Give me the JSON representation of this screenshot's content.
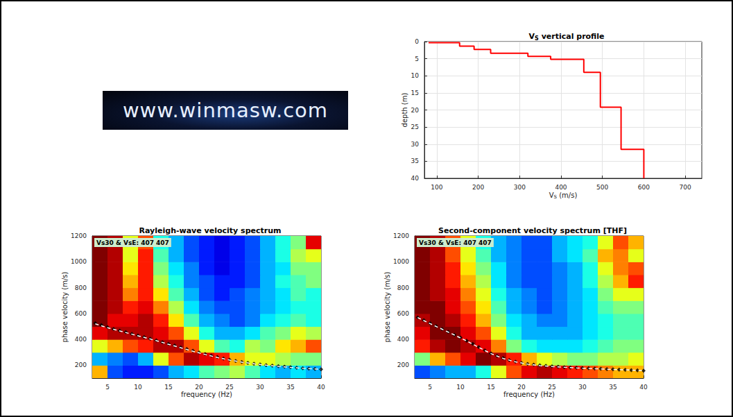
{
  "logo_text": "www.winmasw.com",
  "chart_data": [
    {
      "type": "step",
      "title": {
        "base": "V",
        "subscript": "S",
        "text": " vertical profile"
      },
      "xlabel": {
        "base": "V",
        "subscript": "S",
        "text": " (m/s)"
      },
      "ylabel": "depth (m)",
      "color": "#ff0000",
      "points": [
        [
          80,
          0.3
        ],
        [
          155,
          0.3
        ],
        [
          155,
          1.3
        ],
        [
          190,
          1.3
        ],
        [
          190,
          2.3
        ],
        [
          230,
          2.3
        ],
        [
          230,
          3.4
        ],
        [
          320,
          3.4
        ],
        [
          320,
          4.3
        ],
        [
          375,
          4.3
        ],
        [
          375,
          5.2
        ],
        [
          455,
          5.2
        ],
        [
          455,
          9
        ],
        [
          495,
          9
        ],
        [
          495,
          19.2
        ],
        [
          545,
          19.2
        ],
        [
          545,
          31.5
        ],
        [
          600,
          31.5
        ],
        [
          600,
          40
        ]
      ],
      "xlim": [
        70,
        740
      ],
      "xticks": [
        100,
        200,
        300,
        400,
        500,
        600,
        700
      ],
      "ylim": [
        40,
        0
      ],
      "yticks": [
        0,
        5,
        10,
        15,
        20,
        25,
        30,
        35,
        40
      ],
      "grid": true
    },
    {
      "type": "heatmap",
      "title": "Rayleigh-wave velocity spectrum",
      "annotation": "Vs30 & VsE: 407 407",
      "xlabel": "frequency (Hz)",
      "ylabel": "phase velocity (m/s)",
      "xlim": [
        2.5,
        40
      ],
      "xticks": [
        5,
        10,
        15,
        20,
        25,
        30,
        35,
        40
      ],
      "ylim": [
        100,
        1200
      ],
      "yticks": [
        200,
        400,
        600,
        800,
        1000,
        1200
      ],
      "grid": false,
      "cell_x": [
        3.75,
        6.25,
        8.75,
        11.25,
        13.75,
        16.25,
        18.75,
        21.25,
        23.75,
        26.25,
        28.75,
        31.25,
        33.75,
        36.25,
        38.75
      ],
      "cell_y": [
        150,
        250,
        350,
        450,
        550,
        650,
        750,
        850,
        950,
        1050,
        1150
      ],
      "cells": [
        [
          0.7,
          0.2,
          0.15,
          0.15,
          0.2,
          0.3,
          0.35,
          0.45,
          0.5,
          0.55,
          0.45,
          0.35,
          0.3,
          0.35,
          0.3
        ],
        [
          0.3,
          0.25,
          0.2,
          0.3,
          0.6,
          0.8,
          0.95,
          0.9,
          0.85,
          0.7,
          0.6,
          0.6,
          0.55,
          0.5,
          0.5
        ],
        [
          0.6,
          0.7,
          0.8,
          0.85,
          0.95,
          0.95,
          0.8,
          0.6,
          0.45,
          0.4,
          0.55,
          0.5,
          0.65,
          0.7,
          0.8
        ],
        [
          0.9,
          0.95,
          0.95,
          0.95,
          0.9,
          0.8,
          0.6,
          0.4,
          0.3,
          0.3,
          0.35,
          0.45,
          0.5,
          0.6,
          0.55
        ],
        [
          1,
          0.9,
          0.9,
          0.95,
          0.85,
          0.65,
          0.45,
          0.3,
          0.25,
          0.2,
          0.25,
          0.35,
          0.4,
          0.45,
          0.4
        ],
        [
          1,
          0.95,
          0.85,
          0.9,
          0.75,
          0.55,
          0.35,
          0.25,
          0.2,
          0.2,
          0.25,
          0.3,
          0.35,
          0.4,
          0.4
        ],
        [
          1,
          0.95,
          0.75,
          0.85,
          0.65,
          0.45,
          0.3,
          0.2,
          0.15,
          0.2,
          0.25,
          0.3,
          0.35,
          0.45,
          0.4
        ],
        [
          1,
          0.95,
          0.7,
          0.85,
          0.55,
          0.4,
          0.25,
          0.2,
          0.15,
          0.15,
          0.2,
          0.3,
          0.4,
          0.45,
          0.5
        ],
        [
          1,
          0.95,
          0.65,
          0.85,
          0.5,
          0.35,
          0.25,
          0.15,
          0.1,
          0.15,
          0.2,
          0.3,
          0.35,
          0.5,
          0.5
        ],
        [
          1,
          0.95,
          0.6,
          0.85,
          0.45,
          0.3,
          0.2,
          0.15,
          0.1,
          0.15,
          0.2,
          0.3,
          0.4,
          0.55,
          0.6
        ],
        [
          1,
          0.95,
          0.6,
          0.8,
          0.4,
          0.3,
          0.2,
          0.15,
          0.1,
          0.15,
          0.2,
          0.3,
          0.4,
          0.5,
          0.9
        ]
      ],
      "zlim": [
        0,
        1
      ],
      "series": [
        {
          "type": "line",
          "line_style": "dashed",
          "color": "#ffffff",
          "x": [
            3,
            5,
            7,
            9,
            11,
            13,
            15,
            17,
            19,
            21,
            23,
            25,
            27,
            29,
            31,
            33,
            35,
            37,
            40
          ],
          "values": [
            520,
            490,
            465,
            440,
            415,
            390,
            362,
            335,
            308,
            283,
            260,
            240,
            224,
            211,
            200,
            191,
            183,
            176,
            168
          ]
        },
        {
          "type": "scatter",
          "marker": "diamond",
          "color": "#000000",
          "x": [
            3,
            4,
            5,
            6,
            7,
            8,
            9,
            10,
            11,
            12,
            13,
            14,
            15,
            16,
            17,
            18,
            19,
            20,
            21,
            22,
            23,
            24,
            25,
            26,
            27,
            28,
            29,
            30,
            31,
            32,
            33,
            34,
            35,
            36,
            37,
            38,
            39,
            40
          ],
          "values": [
            525,
            510,
            495,
            480,
            468,
            455,
            442,
            430,
            418,
            405,
            392,
            378,
            365,
            352,
            338,
            325,
            312,
            298,
            286,
            274,
            263,
            252,
            242,
            233,
            225,
            218,
            212,
            206,
            201,
            196,
            192,
            188,
            184,
            180,
            177,
            174,
            171,
            168
          ]
        }
      ]
    },
    {
      "type": "heatmap",
      "title": "Second-component velocity spectrum [THF]",
      "annotation": "Vs30 & VsE: 407 407",
      "xlabel": "frequency (Hz)",
      "ylabel": "phase velocity (m/s)",
      "xlim": [
        2.5,
        40
      ],
      "xticks": [
        5,
        10,
        15,
        20,
        25,
        30,
        35,
        40
      ],
      "ylim": [
        100,
        1200
      ],
      "yticks": [
        200,
        400,
        600,
        800,
        1000,
        1200
      ],
      "grid": false,
      "cell_x": [
        3.75,
        6.25,
        8.75,
        11.25,
        13.75,
        16.25,
        18.75,
        21.25,
        23.75,
        26.25,
        28.75,
        31.25,
        33.75,
        36.25,
        38.75
      ],
      "cell_y": [
        150,
        250,
        350,
        450,
        550,
        650,
        750,
        850,
        950,
        1050,
        1150
      ],
      "cells": [
        [
          0.2,
          0.25,
          0.3,
          0.3,
          0.4,
          0.6,
          0.8,
          0.9,
          0.95,
          0.9,
          0.85,
          0.8,
          0.75,
          0.7,
          0.7
        ],
        [
          0.5,
          0.7,
          0.8,
          0.9,
          1,
          0.95,
          0.85,
          0.7,
          0.6,
          0.55,
          0.5,
          0.5,
          0.55,
          0.55,
          0.6
        ],
        [
          0.85,
          0.95,
          1,
          0.95,
          0.9,
          0.75,
          0.5,
          0.4,
          0.35,
          0.35,
          0.35,
          0.4,
          0.45,
          0.5,
          0.5
        ],
        [
          0.9,
          1,
          1,
          0.9,
          0.8,
          0.6,
          0.4,
          0.3,
          0.3,
          0.3,
          0.3,
          0.35,
          0.4,
          0.45,
          0.45
        ],
        [
          0.95,
          1,
          0.95,
          0.85,
          0.7,
          0.5,
          0.35,
          0.3,
          0.25,
          0.25,
          0.3,
          0.35,
          0.4,
          0.45,
          0.45
        ],
        [
          1,
          1,
          0.9,
          0.8,
          0.65,
          0.45,
          0.3,
          0.25,
          0.2,
          0.25,
          0.3,
          0.35,
          0.45,
          0.5,
          0.5
        ],
        [
          1,
          0.95,
          0.9,
          0.75,
          0.6,
          0.4,
          0.3,
          0.25,
          0.2,
          0.25,
          0.3,
          0.35,
          0.5,
          0.6,
          0.6
        ],
        [
          1,
          0.95,
          0.85,
          0.7,
          0.55,
          0.35,
          0.25,
          0.2,
          0.2,
          0.25,
          0.3,
          0.4,
          0.55,
          0.7,
          0.85
        ],
        [
          1,
          0.95,
          0.85,
          0.65,
          0.5,
          0.35,
          0.25,
          0.2,
          0.2,
          0.25,
          0.3,
          0.4,
          0.6,
          0.75,
          0.8
        ],
        [
          1,
          0.95,
          0.8,
          0.6,
          0.45,
          0.3,
          0.25,
          0.2,
          0.2,
          0.3,
          0.35,
          0.45,
          0.7,
          0.75,
          0.6
        ],
        [
          1,
          0.95,
          0.8,
          0.6,
          0.4,
          0.3,
          0.25,
          0.2,
          0.2,
          0.3,
          0.35,
          0.4,
          0.6,
          0.8,
          0.7
        ]
      ],
      "zlim": [
        0,
        1
      ],
      "series": [
        {
          "type": "line",
          "line_style": "dashed",
          "color": "#ffffff",
          "x": [
            3,
            5,
            7,
            9,
            11,
            13,
            15,
            17,
            19,
            21,
            23,
            25,
            27,
            29,
            31,
            33,
            35,
            37,
            40
          ],
          "values": [
            568,
            522,
            478,
            434,
            388,
            338,
            290,
            252,
            226,
            208,
            197,
            190,
            184,
            179,
            175,
            171,
            167,
            164,
            158
          ]
        },
        {
          "type": "scatter",
          "marker": "diamond",
          "color": "#000000",
          "x": [
            3,
            4,
            5,
            6,
            7,
            8,
            9,
            10,
            11,
            12,
            13,
            14,
            15,
            16,
            17,
            18,
            19,
            20,
            21,
            22,
            23,
            24,
            25,
            26,
            27,
            28,
            29,
            30,
            31,
            32,
            33,
            34,
            35,
            36,
            37,
            38,
            39,
            40
          ],
          "values": [
            570,
            548,
            525,
            503,
            480,
            458,
            436,
            414,
            390,
            365,
            340,
            315,
            292,
            272,
            255,
            240,
            228,
            218,
            210,
            204,
            199,
            195,
            191,
            188,
            185,
            182,
            180,
            178,
            176,
            174,
            172,
            170,
            168,
            166,
            164,
            162,
            160,
            158
          ]
        }
      ]
    }
  ]
}
